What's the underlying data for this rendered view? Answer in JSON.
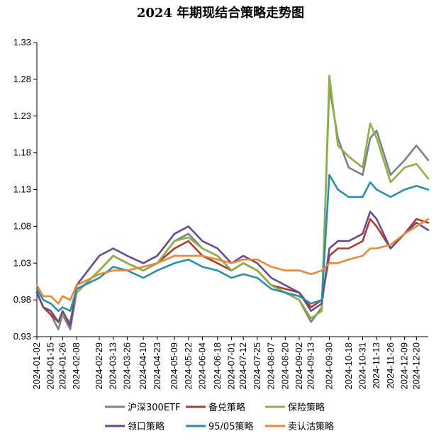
{
  "chart_data": {
    "type": "line",
    "title": "2024 年期现结合策略走势图",
    "ylim": [
      0.93,
      1.33
    ],
    "yticks": [
      "0.93",
      "0.98",
      "1.03",
      "1.08",
      "1.13",
      "1.18",
      "1.23",
      "1.28",
      "1.33"
    ],
    "xlim": [
      "2024-01-02",
      "2024-12-31"
    ],
    "xticks": [
      "2024-01-02",
      "2024-01-15",
      "2024-01-26",
      "2024-02-08",
      "2024-02-29",
      "2024-03-13",
      "2024-03-26",
      "2024-04-10",
      "2024-04-23",
      "2024-05-09",
      "2024-05-22",
      "2024-06-04",
      "2024-06-18",
      "2024-07-01",
      "2024-07-12",
      "2024-07-25",
      "2024-08-07",
      "2024-08-20",
      "2024-09-02",
      "2024-09-13",
      "2024-09-30",
      "2024-10-18",
      "2024-10-31",
      "2024-11-13",
      "2024-11-26",
      "2024-12-09",
      "2024-12-20"
    ],
    "grid": false,
    "legend_position": "bottom",
    "series": [
      {
        "name": "沪深300ETF",
        "color": "#808080",
        "points": [
          [
            "2024-01-02",
            0.99
          ],
          [
            "2024-01-08",
            0.97
          ],
          [
            "2024-01-15",
            0.96
          ],
          [
            "2024-01-22",
            0.94
          ],
          [
            "2024-01-26",
            0.96
          ],
          [
            "2024-02-02",
            0.94
          ],
          [
            "2024-02-08",
            0.99
          ],
          [
            "2024-02-29",
            1.02
          ],
          [
            "2024-03-13",
            1.04
          ],
          [
            "2024-03-26",
            1.03
          ],
          [
            "2024-04-10",
            1.02
          ],
          [
            "2024-04-23",
            1.03
          ],
          [
            "2024-05-09",
            1.06
          ],
          [
            "2024-05-22",
            1.07
          ],
          [
            "2024-06-04",
            1.05
          ],
          [
            "2024-06-18",
            1.04
          ],
          [
            "2024-07-01",
            1.02
          ],
          [
            "2024-07-12",
            1.03
          ],
          [
            "2024-07-25",
            1.02
          ],
          [
            "2024-08-07",
            1.0
          ],
          [
            "2024-08-20",
            0.99
          ],
          [
            "2024-09-02",
            0.98
          ],
          [
            "2024-09-13",
            0.95
          ],
          [
            "2024-09-23",
            0.97
          ],
          [
            "2024-09-30",
            1.27
          ],
          [
            "2024-10-08",
            1.2
          ],
          [
            "2024-10-18",
            1.16
          ],
          [
            "2024-10-31",
            1.15
          ],
          [
            "2024-11-07",
            1.2
          ],
          [
            "2024-11-13",
            1.21
          ],
          [
            "2024-11-26",
            1.15
          ],
          [
            "2024-12-09",
            1.17
          ],
          [
            "2024-12-20",
            1.19
          ],
          [
            "2024-12-31",
            1.17
          ]
        ]
      },
      {
        "name": "备兑策略",
        "color": "#b03a2e",
        "points": [
          [
            "2024-01-02",
            0.99
          ],
          [
            "2024-01-08",
            0.97
          ],
          [
            "2024-01-15",
            0.96
          ],
          [
            "2024-01-22",
            0.95
          ],
          [
            "2024-01-26",
            0.96
          ],
          [
            "2024-02-02",
            0.95
          ],
          [
            "2024-02-08",
            0.99
          ],
          [
            "2024-02-29",
            1.02
          ],
          [
            "2024-03-13",
            1.04
          ],
          [
            "2024-03-26",
            1.03
          ],
          [
            "2024-04-10",
            1.02
          ],
          [
            "2024-04-23",
            1.03
          ],
          [
            "2024-05-09",
            1.05
          ],
          [
            "2024-05-22",
            1.06
          ],
          [
            "2024-06-04",
            1.04
          ],
          [
            "2024-06-18",
            1.03
          ],
          [
            "2024-07-01",
            1.02
          ],
          [
            "2024-07-12",
            1.03
          ],
          [
            "2024-07-25",
            1.02
          ],
          [
            "2024-08-07",
            1.0
          ],
          [
            "2024-08-20",
            0.995
          ],
          [
            "2024-09-02",
            0.99
          ],
          [
            "2024-09-13",
            0.97
          ],
          [
            "2024-09-23",
            0.98
          ],
          [
            "2024-09-30",
            1.04
          ],
          [
            "2024-10-08",
            1.05
          ],
          [
            "2024-10-18",
            1.05
          ],
          [
            "2024-10-31",
            1.06
          ],
          [
            "2024-11-07",
            1.09
          ],
          [
            "2024-11-13",
            1.08
          ],
          [
            "2024-11-26",
            1.05
          ],
          [
            "2024-12-09",
            1.07
          ],
          [
            "2024-12-20",
            1.09
          ],
          [
            "2024-12-31",
            1.085
          ]
        ]
      },
      {
        "name": "保险策略",
        "color": "#8db04a",
        "points": [
          [
            "2024-01-02",
            0.99
          ],
          [
            "2024-01-08",
            0.97
          ],
          [
            "2024-01-15",
            0.965
          ],
          [
            "2024-01-22",
            0.95
          ],
          [
            "2024-01-26",
            0.96
          ],
          [
            "2024-02-02",
            0.95
          ],
          [
            "2024-02-08",
            0.99
          ],
          [
            "2024-02-29",
            1.02
          ],
          [
            "2024-03-13",
            1.04
          ],
          [
            "2024-03-26",
            1.03
          ],
          [
            "2024-04-10",
            1.02
          ],
          [
            "2024-04-23",
            1.03
          ],
          [
            "2024-05-09",
            1.06
          ],
          [
            "2024-05-22",
            1.065
          ],
          [
            "2024-06-04",
            1.05
          ],
          [
            "2024-06-18",
            1.04
          ],
          [
            "2024-07-01",
            1.02
          ],
          [
            "2024-07-12",
            1.03
          ],
          [
            "2024-07-25",
            1.02
          ],
          [
            "2024-08-07",
            1.0
          ],
          [
            "2024-08-20",
            0.99
          ],
          [
            "2024-09-02",
            0.98
          ],
          [
            "2024-09-13",
            0.955
          ],
          [
            "2024-09-23",
            0.965
          ],
          [
            "2024-09-30",
            1.285
          ],
          [
            "2024-10-08",
            1.19
          ],
          [
            "2024-10-18",
            1.175
          ],
          [
            "2024-10-31",
            1.16
          ],
          [
            "2024-11-07",
            1.22
          ],
          [
            "2024-11-13",
            1.2
          ],
          [
            "2024-11-26",
            1.14
          ],
          [
            "2024-12-09",
            1.16
          ],
          [
            "2024-12-20",
            1.165
          ],
          [
            "2024-12-31",
            1.145
          ]
        ]
      },
      {
        "name": "领口策略",
        "color": "#6a4a8c",
        "points": [
          [
            "2024-01-02",
            0.99
          ],
          [
            "2024-01-08",
            0.97
          ],
          [
            "2024-01-15",
            0.965
          ],
          [
            "2024-01-22",
            0.95
          ],
          [
            "2024-01-26",
            0.965
          ],
          [
            "2024-02-02",
            0.945
          ],
          [
            "2024-02-08",
            1.0
          ],
          [
            "2024-02-29",
            1.04
          ],
          [
            "2024-03-13",
            1.05
          ],
          [
            "2024-03-26",
            1.04
          ],
          [
            "2024-04-10",
            1.03
          ],
          [
            "2024-04-23",
            1.04
          ],
          [
            "2024-05-09",
            1.07
          ],
          [
            "2024-05-22",
            1.08
          ],
          [
            "2024-06-04",
            1.06
          ],
          [
            "2024-06-18",
            1.05
          ],
          [
            "2024-07-01",
            1.03
          ],
          [
            "2024-07-12",
            1.04
          ],
          [
            "2024-07-25",
            1.03
          ],
          [
            "2024-08-07",
            1.01
          ],
          [
            "2024-08-20",
            1.0
          ],
          [
            "2024-09-02",
            0.99
          ],
          [
            "2024-09-13",
            0.965
          ],
          [
            "2024-09-23",
            0.975
          ],
          [
            "2024-09-30",
            1.05
          ],
          [
            "2024-10-08",
            1.06
          ],
          [
            "2024-10-18",
            1.06
          ],
          [
            "2024-10-31",
            1.07
          ],
          [
            "2024-11-07",
            1.1
          ],
          [
            "2024-11-13",
            1.09
          ],
          [
            "2024-11-26",
            1.05
          ],
          [
            "2024-12-09",
            1.07
          ],
          [
            "2024-12-20",
            1.085
          ],
          [
            "2024-12-31",
            1.075
          ]
        ]
      },
      {
        "name": "95/05策略",
        "color": "#2b8ea8",
        "points": [
          [
            "2024-01-02",
            0.995
          ],
          [
            "2024-01-08",
            0.98
          ],
          [
            "2024-01-15",
            0.975
          ],
          [
            "2024-01-22",
            0.965
          ],
          [
            "2024-01-26",
            0.97
          ],
          [
            "2024-02-02",
            0.965
          ],
          [
            "2024-02-08",
            0.995
          ],
          [
            "2024-02-29",
            1.01
          ],
          [
            "2024-03-13",
            1.025
          ],
          [
            "2024-03-26",
            1.02
          ],
          [
            "2024-04-10",
            1.01
          ],
          [
            "2024-04-23",
            1.02
          ],
          [
            "2024-05-09",
            1.03
          ],
          [
            "2024-05-22",
            1.035
          ],
          [
            "2024-06-04",
            1.025
          ],
          [
            "2024-06-18",
            1.02
          ],
          [
            "2024-07-01",
            1.01
          ],
          [
            "2024-07-12",
            1.015
          ],
          [
            "2024-07-25",
            1.01
          ],
          [
            "2024-08-07",
            0.995
          ],
          [
            "2024-08-20",
            0.99
          ],
          [
            "2024-09-02",
            0.985
          ],
          [
            "2024-09-13",
            0.975
          ],
          [
            "2024-09-23",
            0.98
          ],
          [
            "2024-09-30",
            1.15
          ],
          [
            "2024-10-08",
            1.13
          ],
          [
            "2024-10-18",
            1.12
          ],
          [
            "2024-10-31",
            1.12
          ],
          [
            "2024-11-07",
            1.14
          ],
          [
            "2024-11-13",
            1.13
          ],
          [
            "2024-11-26",
            1.12
          ],
          [
            "2024-12-09",
            1.13
          ],
          [
            "2024-12-20",
            1.135
          ],
          [
            "2024-12-31",
            1.13
          ]
        ]
      },
      {
        "name": "卖认沽策略",
        "color": "#e38a3c",
        "points": [
          [
            "2024-01-02",
            1.0
          ],
          [
            "2024-01-08",
            0.985
          ],
          [
            "2024-01-15",
            0.985
          ],
          [
            "2024-01-22",
            0.975
          ],
          [
            "2024-01-26",
            0.985
          ],
          [
            "2024-02-02",
            0.98
          ],
          [
            "2024-02-08",
            1.0
          ],
          [
            "2024-02-29",
            1.015
          ],
          [
            "2024-03-13",
            1.02
          ],
          [
            "2024-03-26",
            1.02
          ],
          [
            "2024-04-10",
            1.025
          ],
          [
            "2024-04-23",
            1.03
          ],
          [
            "2024-05-09",
            1.04
          ],
          [
            "2024-05-22",
            1.04
          ],
          [
            "2024-06-04",
            1.04
          ],
          [
            "2024-06-18",
            1.035
          ],
          [
            "2024-07-01",
            1.03
          ],
          [
            "2024-07-12",
            1.035
          ],
          [
            "2024-07-25",
            1.035
          ],
          [
            "2024-08-07",
            1.025
          ],
          [
            "2024-08-20",
            1.02
          ],
          [
            "2024-09-02",
            1.02
          ],
          [
            "2024-09-13",
            1.015
          ],
          [
            "2024-09-23",
            1.02
          ],
          [
            "2024-09-30",
            1.03
          ],
          [
            "2024-10-08",
            1.03
          ],
          [
            "2024-10-18",
            1.035
          ],
          [
            "2024-10-31",
            1.04
          ],
          [
            "2024-11-07",
            1.05
          ],
          [
            "2024-11-13",
            1.05
          ],
          [
            "2024-11-26",
            1.055
          ],
          [
            "2024-12-09",
            1.07
          ],
          [
            "2024-12-20",
            1.08
          ],
          [
            "2024-12-31",
            1.09
          ]
        ]
      }
    ]
  }
}
